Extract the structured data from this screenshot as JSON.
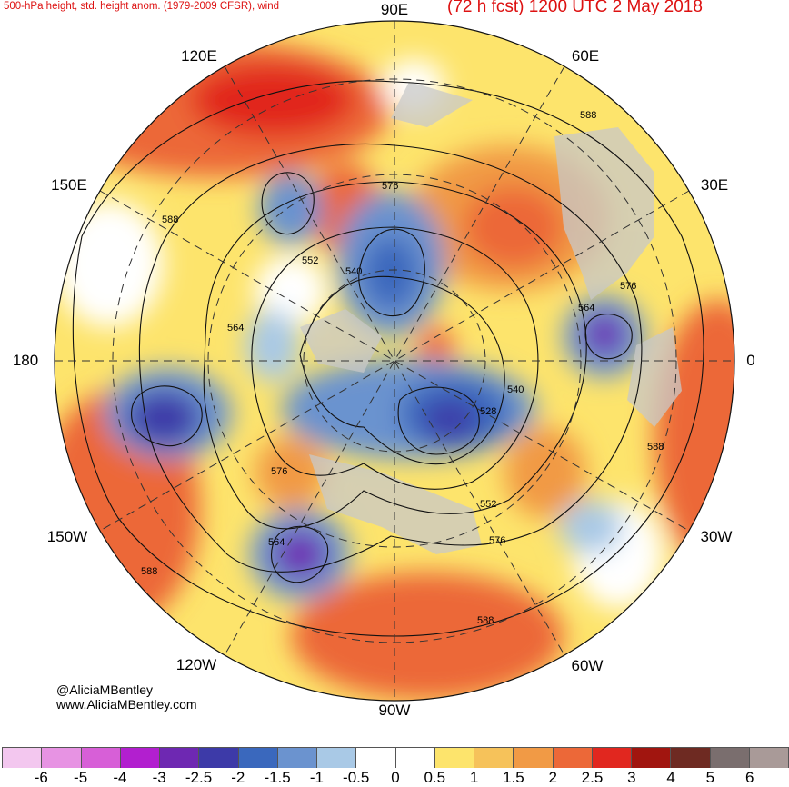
{
  "header": {
    "title": "500-hPa height, std. height anom. (1979-2009 CFSR), wind",
    "forecast": "(72 h fcst) 1200 UTC 2 May 2018"
  },
  "longitude_labels": {
    "e90": "90E",
    "e60": "60E",
    "e30": "30E",
    "zero": "0",
    "w30": "30W",
    "w60": "60W",
    "w90": "90W",
    "w120": "120W",
    "w150": "150W",
    "lon180": "180",
    "e150": "150E",
    "e120": "120E"
  },
  "credit": {
    "handle": "@AliciaMBentley",
    "website": "www.AliciaMBentley.com"
  },
  "contour_labels": [
    "576",
    "588",
    "588",
    "552",
    "540",
    "564",
    "576",
    "564",
    "540",
    "528",
    "576",
    "552",
    "576",
    "564",
    "588",
    "588",
    "588"
  ],
  "legend": {
    "ticks": [
      "-6",
      "-5",
      "-4",
      "-3",
      "-2.5",
      "-2",
      "-1.5",
      "-1",
      "-0.5",
      "0",
      "0.5",
      "1",
      "1.5",
      "2",
      "2.5",
      "3",
      "4",
      "5",
      "6"
    ],
    "colors": [
      "#f3c7ef",
      "#e793e3",
      "#d75fd7",
      "#b21fcf",
      "#6e28b2",
      "#3d3aa8",
      "#3a68bd",
      "#6b93cf",
      "#a9c9e6",
      "#ffffff",
      "#ffffff",
      "#fde46c",
      "#f6c25a",
      "#f19a45",
      "#ec6838",
      "#e1271f",
      "#a1150f",
      "#6e2a22",
      "#7a6e6e",
      "#a99a98"
    ]
  },
  "anomaly_colors": {
    "strong_positive": "#ec6838",
    "positive": "#f19a45",
    "weak_positive": "#f6c25a",
    "slight_positive": "#fde46c",
    "slight_negative": "#a9c9e6",
    "negative": "#6b93cf",
    "strong_negative": "#3a68bd",
    "very_negative": "#3d3aa8",
    "extreme_negative": "#6e28b2",
    "land_overlay": "#c8c8c8"
  }
}
